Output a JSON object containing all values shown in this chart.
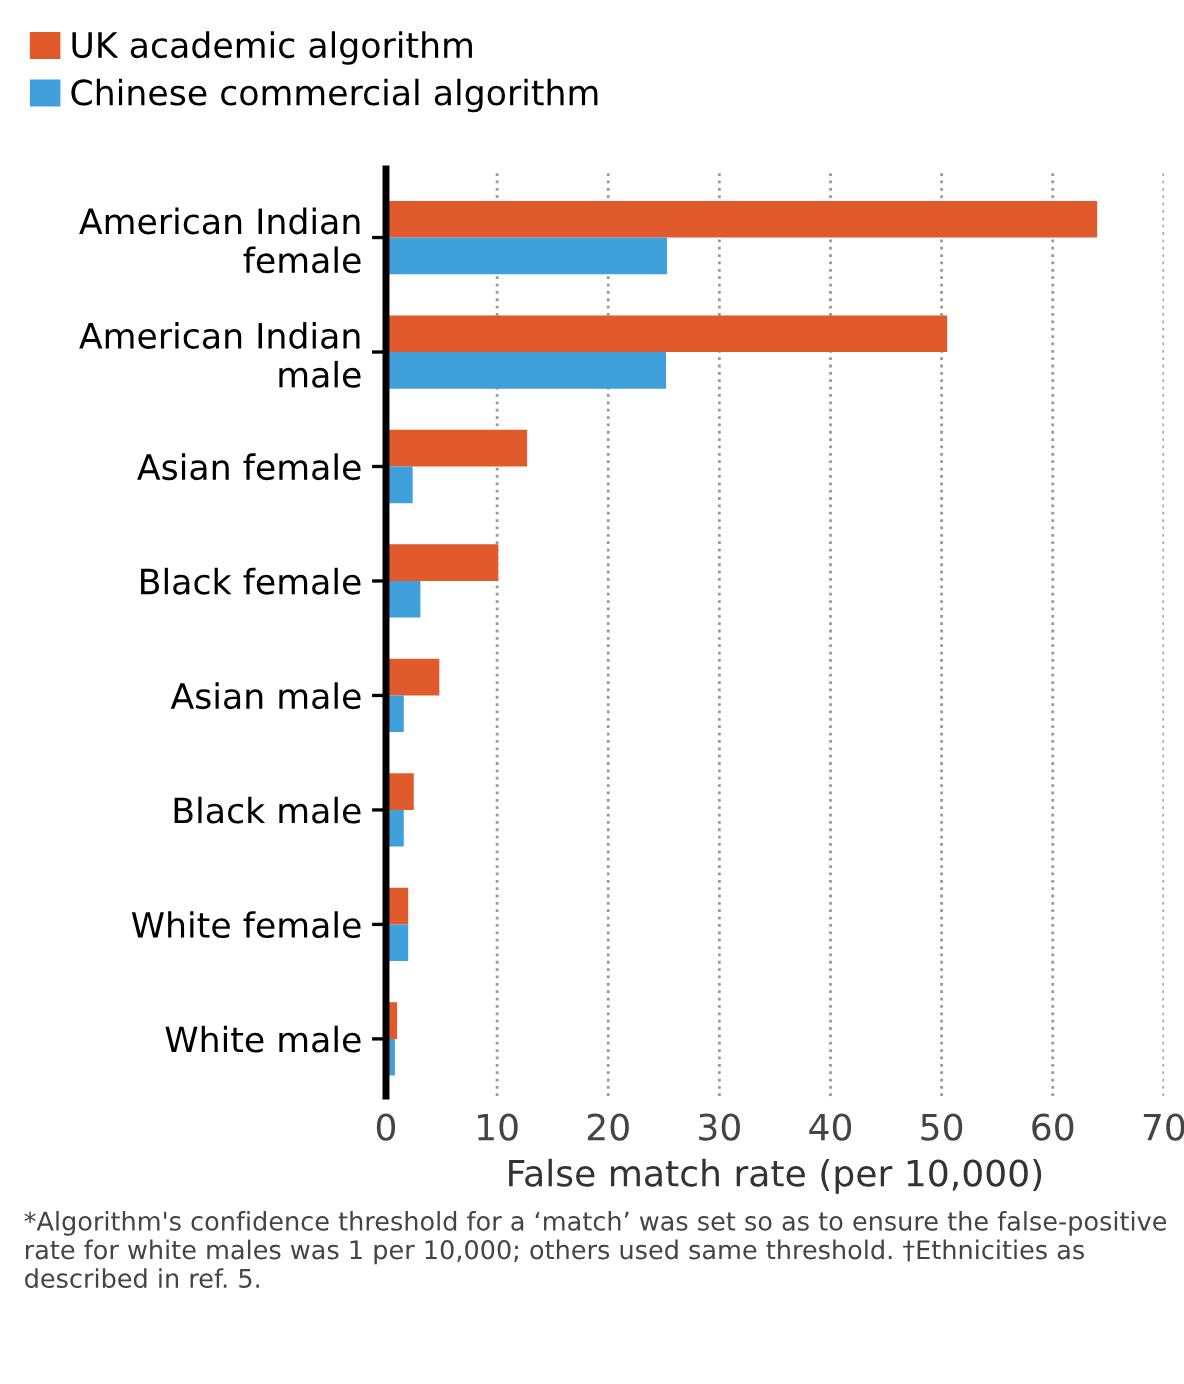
{
  "chart_data": {
    "type": "bar",
    "orientation": "horizontal",
    "categories": [
      "American Indian\nfemale",
      "American Indian\nmale",
      "Asian female",
      "Black female",
      "Asian male",
      "Black male",
      "White female",
      "White male"
    ],
    "series": [
      {
        "name": "UK academic algorithm",
        "color": "#e05a2b",
        "values": [
          64,
          50.5,
          12.7,
          10.1,
          4.8,
          2.5,
          2.0,
          1.0
        ]
      },
      {
        "name": "Chinese commercial algorithm",
        "color": "#3fa0dc",
        "values": [
          25.3,
          25.2,
          2.4,
          3.1,
          1.6,
          1.6,
          2.0,
          0.8
        ]
      }
    ],
    "xlabel": "False match rate (per 10,000)",
    "xlim": [
      0,
      70
    ],
    "xticks": [
      0,
      10,
      20,
      30,
      40,
      50,
      60,
      70
    ],
    "grid": "x",
    "legend": "top left",
    "annotations": [
      "*Algorithm's confidence threshold for a ‘match’ was set so as to ensure the false-positive rate for white males was 1 per 10,000; others used same threshold. †Ethnicities as described in ref. 5."
    ]
  }
}
